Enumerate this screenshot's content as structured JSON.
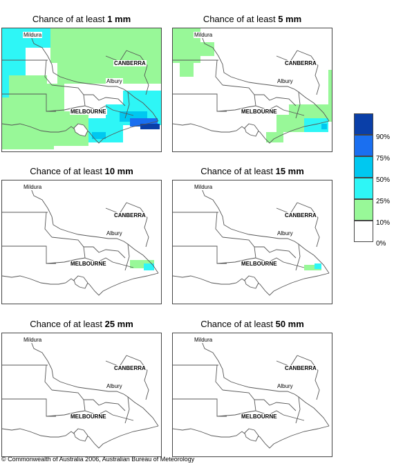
{
  "panels": [
    {
      "prefix": "Chance of at least ",
      "amount": "1 mm",
      "level": 0
    },
    {
      "prefix": "Chance of at least ",
      "amount": "5 mm",
      "level": 1
    },
    {
      "prefix": "Chance of at least ",
      "amount": "10 mm",
      "level": 2
    },
    {
      "prefix": "Chance of at least ",
      "amount": "15 mm",
      "level": 3
    },
    {
      "prefix": "Chance of at least ",
      "amount": "25 mm",
      "level": 4
    },
    {
      "prefix": "Chance of at least ",
      "amount": "50 mm",
      "level": 4
    }
  ],
  "places": {
    "mildura": "Mildura",
    "canberra": "CANBERRA",
    "albury": "Albury",
    "melbourne": "MELBOURNE"
  },
  "legend": {
    "labels": [
      "90%",
      "75%",
      "50%",
      "25%",
      "10%",
      "0%"
    ],
    "colors": [
      "#0a3fa8",
      "#1a6ff0",
      "#00c8f0",
      "#2ef6f6",
      "#98f898",
      "#ffffff"
    ]
  },
  "colors": {
    "c10": "#98f898",
    "c25": "#2ef6f6",
    "c50": "#00c8f0",
    "c75": "#1a6ff0",
    "c90": "#0a3fa8"
  },
  "copyright": "© Commonwealth of Australia 2006, Australian Bureau of Meteorology"
}
